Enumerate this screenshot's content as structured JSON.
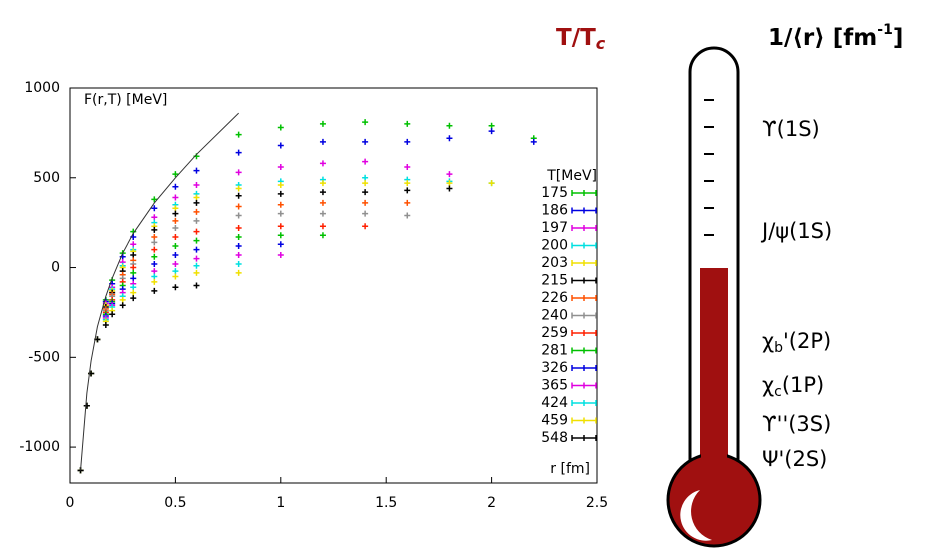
{
  "chart_data": {
    "type": "scatter",
    "y_label": "F(r,T) [MeV]",
    "x_label": "r [fm]",
    "legend_title": "T[MeV]",
    "xlim": [
      0,
      2.5
    ],
    "xticks": [
      0,
      0.5,
      1,
      1.5,
      2,
      2.5
    ],
    "ylim": [
      -1200,
      1000
    ],
    "yticks": [
      -1000,
      -500,
      0,
      500,
      1000
    ],
    "x": [
      0.05,
      0.08,
      0.1,
      0.13,
      0.17,
      0.2,
      0.25,
      0.3,
      0.4,
      0.5,
      0.6,
      0.8,
      1.0,
      1.2,
      1.4,
      1.6,
      1.8,
      2.0,
      2.2
    ],
    "series": [
      {
        "name": "175",
        "color": "#00c000",
        "values": [
          -1130,
          -770,
          -590,
          -400,
          -180,
          -70,
          80,
          200,
          380,
          520,
          620,
          740,
          780,
          800,
          810,
          800,
          790,
          790,
          720
        ]
      },
      {
        "name": "186",
        "color": "#0000e0",
        "values": [
          -1130,
          -770,
          -590,
          -400,
          -190,
          -90,
          60,
          170,
          330,
          450,
          540,
          640,
          680,
          700,
          700,
          700,
          720,
          760,
          700
        ]
      },
      {
        "name": "197",
        "color": "#e000e0",
        "values": [
          -1130,
          -770,
          -590,
          -400,
          -200,
          -110,
          30,
          130,
          280,
          390,
          460,
          530,
          560,
          580,
          590,
          560,
          520,
          null,
          null
        ]
      },
      {
        "name": "200",
        "color": "#00e0e0",
        "values": [
          -1130,
          -770,
          -590,
          -400,
          -210,
          -120,
          10,
          100,
          250,
          350,
          410,
          460,
          480,
          490,
          500,
          490,
          480,
          470,
          null
        ]
      },
      {
        "name": "203",
        "color": "#f0e000",
        "values": [
          -1130,
          -770,
          -590,
          -400,
          -210,
          -130,
          0,
          90,
          230,
          330,
          390,
          440,
          460,
          470,
          470,
          470,
          470,
          470,
          null
        ]
      },
      {
        "name": "215",
        "color": "#000000",
        "values": [
          -1130,
          -770,
          -590,
          -400,
          -220,
          -140,
          -20,
          70,
          210,
          300,
          360,
          400,
          410,
          420,
          420,
          430,
          440,
          null,
          null
        ]
      },
      {
        "name": "226",
        "color": "#ff5000",
        "values": [
          -1130,
          -770,
          -590,
          -400,
          -230,
          -150,
          -40,
          40,
          170,
          260,
          310,
          340,
          350,
          360,
          360,
          360,
          null,
          null,
          null
        ]
      },
      {
        "name": "240",
        "color": "#909090",
        "values": [
          -1130,
          -770,
          -590,
          -400,
          -240,
          -160,
          -60,
          20,
          140,
          220,
          260,
          290,
          300,
          300,
          300,
          290,
          null,
          null,
          null
        ]
      },
      {
        "name": "259",
        "color": "#ff2000",
        "values": [
          -1130,
          -770,
          -590,
          -400,
          -250,
          -180,
          -80,
          0,
          100,
          170,
          200,
          220,
          230,
          230,
          230,
          null,
          null,
          null,
          null
        ]
      },
      {
        "name": "281",
        "color": "#00c000",
        "values": [
          -1130,
          -770,
          -590,
          -400,
          -260,
          -190,
          -100,
          -30,
          60,
          120,
          150,
          170,
          180,
          180,
          null,
          null,
          null,
          null,
          null
        ]
      },
      {
        "name": "326",
        "color": "#0000e0",
        "values": [
          -1130,
          -770,
          -590,
          -400,
          -270,
          -200,
          -120,
          -60,
          20,
          70,
          100,
          120,
          130,
          null,
          null,
          null,
          null,
          null,
          null
        ]
      },
      {
        "name": "365",
        "color": "#e000e0",
        "values": [
          -1130,
          -770,
          -590,
          -400,
          -280,
          -210,
          -140,
          -90,
          -20,
          20,
          50,
          70,
          70,
          null,
          null,
          null,
          null,
          null,
          null
        ]
      },
      {
        "name": "424",
        "color": "#00e0e0",
        "values": [
          -1130,
          -770,
          -590,
          -400,
          -290,
          -220,
          -160,
          -110,
          -50,
          -20,
          10,
          20,
          null,
          null,
          null,
          null,
          null,
          null,
          null
        ]
      },
      {
        "name": "459",
        "color": "#f0e000",
        "values": [
          -1130,
          -770,
          -590,
          -400,
          -300,
          -240,
          -180,
          -140,
          -80,
          -50,
          -30,
          -30,
          null,
          null,
          null,
          null,
          null,
          null,
          null
        ]
      },
      {
        "name": "548",
        "color": "#000000",
        "values": [
          -1130,
          -770,
          -590,
          -400,
          -320,
          -260,
          -210,
          -170,
          -130,
          -110,
          -100,
          null,
          null,
          null,
          null,
          null,
          null,
          null,
          null
        ]
      },
      {
        "color": "#333333",
        "values": [
          -1130,
          -700,
          -520,
          -330,
          -160,
          -60,
          80,
          190,
          360,
          500,
          630,
          860,
          null,
          null,
          null,
          null,
          null,
          null,
          null
        ]
      }
    ]
  },
  "thermometer": {
    "temperature_label": {
      "main": "T/T",
      "sub": "c"
    },
    "radius_label": {
      "main": "1/⟨r⟩ [fm",
      "sup": "-1",
      "end": "]"
    },
    "states": [
      {
        "text": "ϒ(1S)"
      },
      {
        "text": "J/ψ(1S)"
      },
      {
        "text": "χ",
        "sub": "b",
        "rest": "'(2P)"
      },
      {
        "text": "χ",
        "sub": "c",
        "rest": "(1P)"
      },
      {
        "text": "ϒ''(3S)"
      },
      {
        "text": "Ψ'(2S)"
      }
    ]
  }
}
